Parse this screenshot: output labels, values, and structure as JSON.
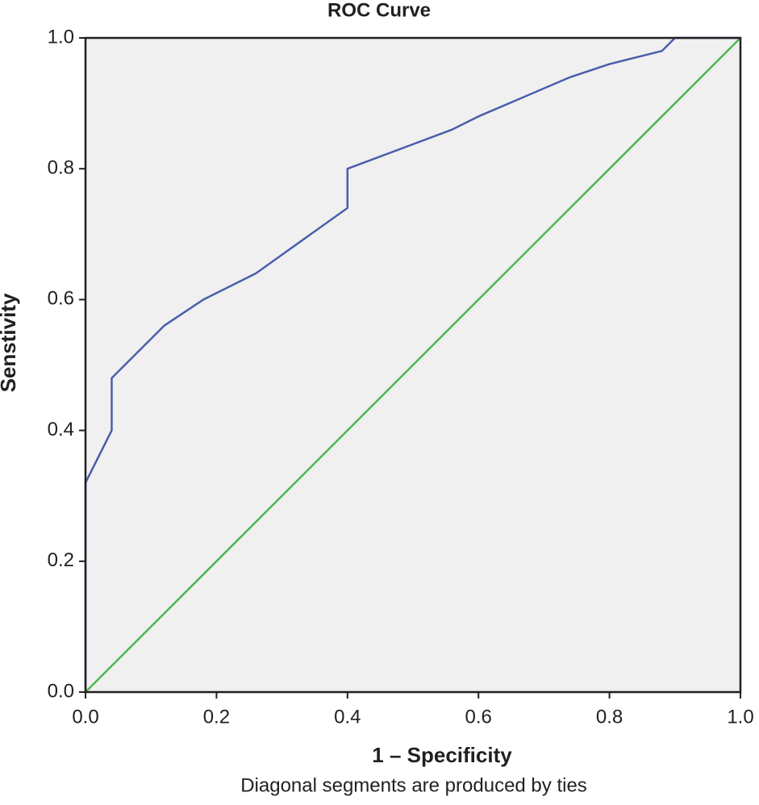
{
  "chart_data": {
    "type": "line",
    "title": "ROC Curve",
    "x_label": "1 – Specificity",
    "y_label": "Senstivity",
    "note": "Diagonal segments are produced by ties",
    "xlim": [
      0,
      1
    ],
    "ylim": [
      0,
      1
    ],
    "xticks": [
      {
        "value": 0,
        "label": "0.0"
      },
      0.2,
      0.4,
      0.6,
      0.8,
      {
        "value": 1,
        "label": "1.0"
      }
    ],
    "yticks": [
      {
        "value": 0,
        "label": "0.0"
      },
      0.2,
      0.4,
      0.6,
      0.8,
      {
        "value": 1,
        "label": "1.0"
      }
    ],
    "background": "#f0f0f0",
    "series": [
      {
        "color": "#4a5eab",
        "x": [
          0,
          0,
          0.04,
          0.04,
          0.12,
          0.18,
          0.26,
          0.4,
          0.4,
          0.56,
          0.6,
          0.74,
          0.8,
          0.88,
          0.9,
          1
        ],
        "values": [
          0,
          0.32,
          0.4,
          0.48,
          0.56,
          0.6,
          0.64,
          0.74,
          0.8,
          0.86,
          0.88,
          0.94,
          0.96,
          0.98,
          1,
          1
        ]
      },
      {
        "color": "#4cb84c",
        "x": [
          0,
          1
        ],
        "values": [
          0,
          1
        ]
      }
    ]
  }
}
